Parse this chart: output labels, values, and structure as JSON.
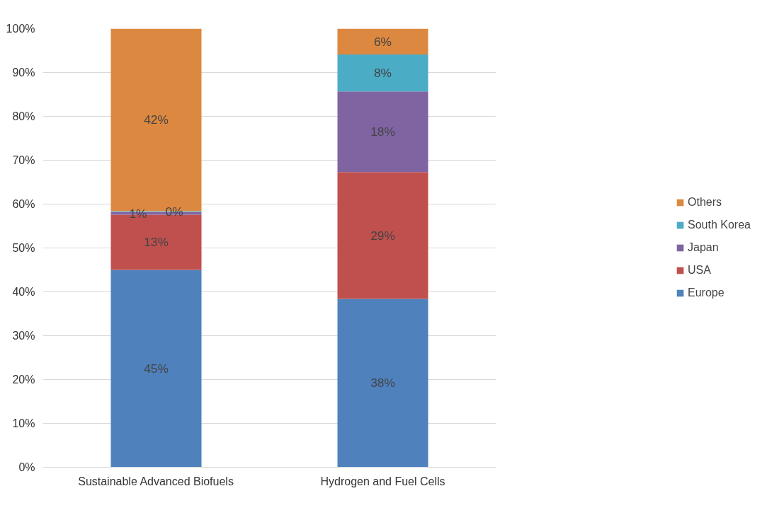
{
  "chart_data": {
    "type": "bar",
    "stacked": true,
    "categories": [
      "Sustainable Advanced Biofuels",
      "Hydrogen and Fuel Cells"
    ],
    "series": [
      {
        "name": "Europe",
        "color": "#4f81bd",
        "values": [
          45.0,
          38.4
        ],
        "value_labels": [
          "45%",
          "38%"
        ]
      },
      {
        "name": "USA",
        "color": "#c0504d",
        "values": [
          12.6,
          28.9
        ],
        "value_labels": [
          "13%",
          "29%"
        ]
      },
      {
        "name": "Japan",
        "color": "#8064a2",
        "values": [
          0.6,
          18.4
        ],
        "value_labels": [
          "1%",
          "18%"
        ]
      },
      {
        "name": "South Korea",
        "color": "#4bacc6",
        "values": [
          0.2,
          8.4
        ],
        "value_labels": [
          "0%",
          "8%"
        ]
      },
      {
        "name": "Others",
        "color": "#dd8840",
        "values": [
          41.6,
          5.9
        ],
        "value_labels": [
          "42%",
          "6%"
        ]
      }
    ],
    "ylim": [
      0,
      100
    ],
    "yticks": [
      {
        "value": 0,
        "label": "0%"
      },
      {
        "value": 10,
        "label": "10%"
      },
      {
        "value": 20,
        "label": "20%"
      },
      {
        "value": 30,
        "label": "30%"
      },
      {
        "value": 40,
        "label": "40%"
      },
      {
        "value": 50,
        "label": "50%"
      },
      {
        "value": 60,
        "label": "60%"
      },
      {
        "value": 70,
        "label": "70%"
      },
      {
        "value": 80,
        "label": "80%"
      },
      {
        "value": 90,
        "label": "90%"
      },
      {
        "value": 100,
        "label": "100%"
      }
    ],
    "grid": "y",
    "legend": "right"
  }
}
